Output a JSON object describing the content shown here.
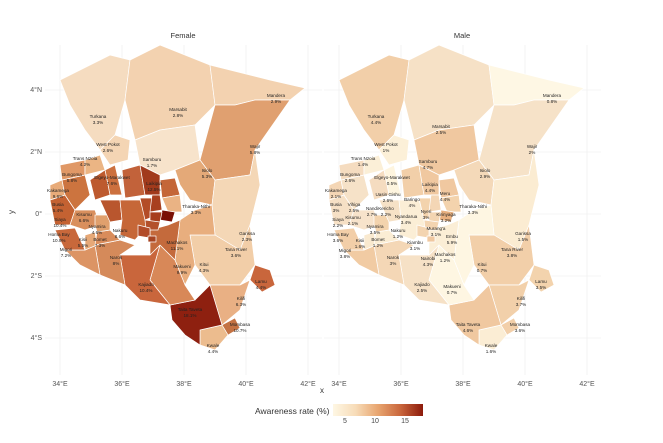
{
  "panels": {
    "female": {
      "title": "Female"
    },
    "male": {
      "title": "Male"
    }
  },
  "axes": {
    "x_label": "x",
    "y_label": "y",
    "x_ticks": [
      "34°E",
      "36°E",
      "38°E",
      "40°E",
      "42°E"
    ],
    "y_ticks": [
      "4°N",
      "2°N",
      "0°",
      "2°S",
      "4°S"
    ]
  },
  "legend": {
    "title": "Awareness rate (%)",
    "ticks": [
      "5",
      "10",
      "15"
    ],
    "color_low": "#fef7e4",
    "color_high": "#8c1a0b"
  },
  "female_labels": [
    {
      "name": "Mandera",
      "value": "2.9%"
    },
    {
      "name": "Marsabit",
      "value": "2.8%"
    },
    {
      "name": "Turkana",
      "value": "3.3%"
    },
    {
      "name": "West Pokot",
      "value": "2.6%"
    },
    {
      "name": "Wajir",
      "value": "5.8%"
    },
    {
      "name": "Samburu",
      "value": "1.7%"
    },
    {
      "name": "Isiolo",
      "value": "5.3%"
    },
    {
      "name": "Trans Nzoia",
      "value": "4.2%"
    },
    {
      "name": "Elgeyo-Marakwet",
      "value": "7.6%"
    },
    {
      "name": "Bungoma",
      "value": "5.8%"
    },
    {
      "name": "Laikipia",
      "value": "12.5%"
    },
    {
      "name": "Kakamega",
      "value": "9.6%"
    },
    {
      "name": "Busia",
      "value": "5.4%"
    },
    {
      "name": "Siaya",
      "value": "10.4%"
    },
    {
      "name": "Kisumu",
      "value": "6.6%"
    },
    {
      "name": "Homa Bay",
      "value": "10.9%"
    },
    {
      "name": "Migori",
      "value": "7.2%"
    },
    {
      "name": "Kisii",
      "value": "5.5%"
    },
    {
      "name": "Nyamira",
      "value": "4.6%"
    },
    {
      "name": "Bomet",
      "value": "7.3%"
    },
    {
      "name": "Nakuru",
      "value": "8.6%"
    },
    {
      "name": "Narok",
      "value": "8%"
    },
    {
      "name": "Kajiado",
      "value": "10.4%"
    },
    {
      "name": "Tharaka-Nithi",
      "value": "3.3%"
    },
    {
      "name": "Machakos",
      "value": "11.1%"
    },
    {
      "name": "Makueni",
      "value": "9.9%"
    },
    {
      "name": "Kitui",
      "value": "4.3%"
    },
    {
      "name": "Garissa",
      "value": "2.3%"
    },
    {
      "name": "Tana River",
      "value": "3.6%"
    },
    {
      "name": "Lamu",
      "value": "4.4%"
    },
    {
      "name": "Kilifi",
      "value": "6.3%"
    },
    {
      "name": "Taita Taveta",
      "value": "18.1%"
    },
    {
      "name": "Mombasa",
      "value": "10.7%"
    },
    {
      "name": "Kwale",
      "value": "4.4%"
    }
  ],
  "male_labels": [
    {
      "name": "Mandera",
      "value": "0.8%"
    },
    {
      "name": "Marsabit",
      "value": "2.5%"
    },
    {
      "name": "Turkana",
      "value": "4.4%"
    },
    {
      "name": "West Pokot",
      "value": "1%"
    },
    {
      "name": "Wajir",
      "value": "2%"
    },
    {
      "name": "Samburu",
      "value": "4.7%"
    },
    {
      "name": "Isiolo",
      "value": "2.9%"
    },
    {
      "name": "Trans Nzoia",
      "value": "1.4%"
    },
    {
      "name": "Elgeyo-Marakwet",
      "value": "0.5%"
    },
    {
      "name": "Bungoma",
      "value": "2.6%"
    },
    {
      "name": "Uasin Gishu",
      "value": "2.6%"
    },
    {
      "name": "Laikipia",
      "value": "4.4%"
    },
    {
      "name": "Kakamega",
      "value": "2.1%"
    },
    {
      "name": "Vihiga",
      "value": "2.5%"
    },
    {
      "name": "Busia",
      "value": "3%"
    },
    {
      "name": "Siaya",
      "value": "2.2%"
    },
    {
      "name": "Kisumu",
      "value": "2.1%"
    },
    {
      "name": "Homa Bay",
      "value": "3.6%"
    },
    {
      "name": "Migori",
      "value": "3.8%"
    },
    {
      "name": "Kisii",
      "value": "1.6%"
    },
    {
      "name": "Nyamira",
      "value": "3.5%"
    },
    {
      "name": "Bomet",
      "value": "1.2%"
    },
    {
      "name": "Kericho",
      "value": "2.2%"
    },
    {
      "name": "Nandi",
      "value": "2.7%"
    },
    {
      "name": "Baringo",
      "value": "4%"
    },
    {
      "name": "Nakuru",
      "value": "1.2%"
    },
    {
      "name": "Narok",
      "value": "3%"
    },
    {
      "name": "Kajiado",
      "value": "2.5%"
    },
    {
      "name": "Nyandarua",
      "value": "3.4%"
    },
    {
      "name": "Nyeri",
      "value": "3%"
    },
    {
      "name": "Kirinyaga",
      "value": "3.2%"
    },
    {
      "name": "Murang'a",
      "value": "3.1%"
    },
    {
      "name": "Kiambu",
      "value": "3.1%"
    },
    {
      "name": "Nairobi",
      "value": "4.3%"
    },
    {
      "name": "Meru",
      "value": "4.4%"
    },
    {
      "name": "Tharaka-Nithi",
      "value": "3.3%"
    },
    {
      "name": "Embu",
      "value": "5.9%"
    },
    {
      "name": "Machakos",
      "value": "1.2%"
    },
    {
      "name": "Makueni",
      "value": "0.7%"
    },
    {
      "name": "Kitui",
      "value": "0.7%"
    },
    {
      "name": "Garissa",
      "value": "1.5%"
    },
    {
      "name": "Tana River",
      "value": "3.8%"
    },
    {
      "name": "Lamu",
      "value": "3.5%"
    },
    {
      "name": "Kilifi",
      "value": "3.7%"
    },
    {
      "name": "Taita Taveta",
      "value": "4.6%"
    },
    {
      "name": "Mombasa",
      "value": "3.6%"
    },
    {
      "name": "Kwale",
      "value": "1.6%"
    }
  ]
}
